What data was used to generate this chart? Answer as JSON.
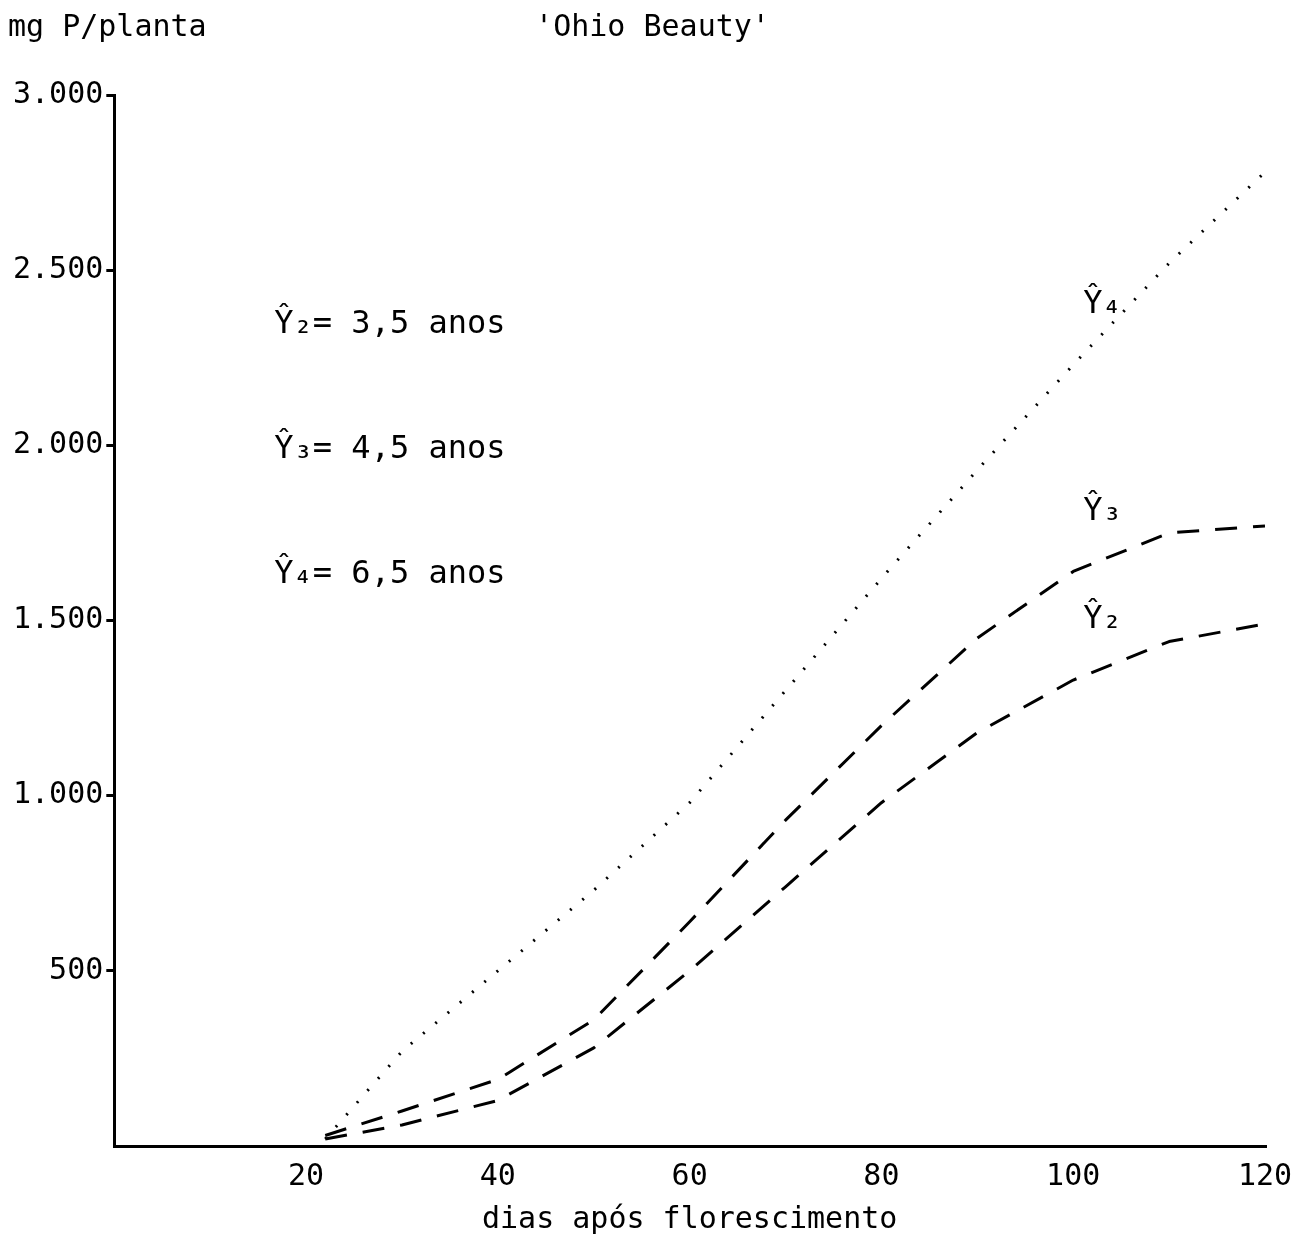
{
  "chart_data": {
    "type": "line",
    "title": "'Ohio Beauty'",
    "ylabel": "mg P/planta",
    "xlabel": "dias após florescimento",
    "x": [
      22,
      30,
      40,
      50,
      60,
      70,
      80,
      90,
      100,
      110,
      120
    ],
    "series": [
      {
        "name": "Ŷ₄",
        "color": "#000000",
        "line_style": "dotted",
        "values": [
          20,
          270,
          500,
          730,
          980,
          1300,
          1620,
          1930,
          2230,
          2520,
          2780
        ]
      },
      {
        "name": "Ŷ₃",
        "color": "#000000",
        "line_style": "dashed",
        "values": [
          30,
          100,
          190,
          360,
          640,
          930,
          1200,
          1450,
          1640,
          1750,
          1770
        ]
      },
      {
        "name": "Ŷ₂",
        "color": "#000000",
        "line_style": "dashed",
        "values": [
          20,
          60,
          130,
          280,
          500,
          740,
          980,
          1180,
          1330,
          1440,
          1490
        ]
      }
    ],
    "annotations": [
      "Ŷ₂= 3,5 anos",
      "Ŷ₃= 4,5 anos",
      "Ŷ₄= 6,5 anos"
    ],
    "xlim": [
      0,
      120
    ],
    "xticks": [
      20,
      40,
      60,
      80,
      100,
      120
    ],
    "ylim": [
      0,
      3000
    ],
    "yticks": [
      500,
      {
        "value": 1000,
        "label": "1.000"
      },
      {
        "value": 1500,
        "label": "1.500"
      },
      {
        "value": 2000,
        "label": "2.000"
      },
      {
        "value": 2500,
        "label": "2.500"
      },
      {
        "value": 3000,
        "label": "3.000"
      }
    ],
    "grid": false,
    "legend": false,
    "marker": "none"
  }
}
